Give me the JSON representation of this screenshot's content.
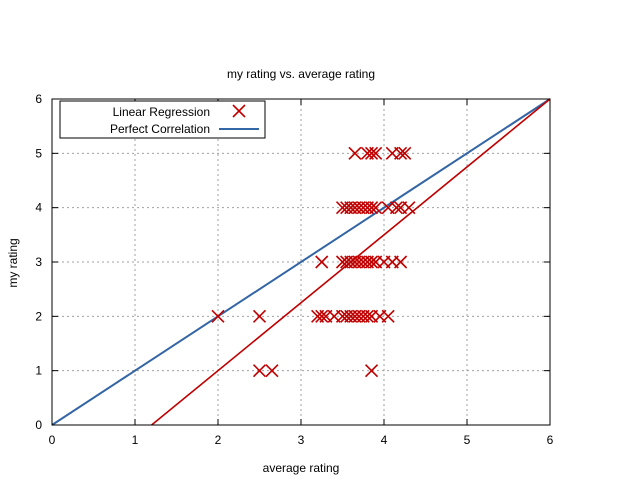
{
  "chart_data": {
    "type": "scatter",
    "title": "my rating vs. average rating",
    "xlabel": "average rating",
    "ylabel": "my rating",
    "xlim": [
      0,
      6
    ],
    "ylim": [
      0,
      6
    ],
    "xticks": [
      0,
      1,
      2,
      3,
      4,
      5,
      6
    ],
    "yticks": [
      0,
      1,
      2,
      3,
      4,
      5,
      6
    ],
    "grid": true,
    "legend_position": "top-left",
    "series": [
      {
        "name": "Linear Regression",
        "kind": "scatter",
        "marker": "x",
        "color": "#c00000",
        "points": [
          [
            2.0,
            2
          ],
          [
            2.5,
            2
          ],
          [
            3.2,
            2
          ],
          [
            3.25,
            2
          ],
          [
            3.3,
            2
          ],
          [
            3.4,
            2
          ],
          [
            3.5,
            2
          ],
          [
            3.55,
            2
          ],
          [
            3.6,
            2
          ],
          [
            3.65,
            2
          ],
          [
            3.7,
            2
          ],
          [
            3.75,
            2
          ],
          [
            3.8,
            2
          ],
          [
            3.85,
            2
          ],
          [
            3.95,
            2
          ],
          [
            4.05,
            2
          ],
          [
            2.5,
            1
          ],
          [
            2.65,
            1
          ],
          [
            3.85,
            1
          ],
          [
            3.25,
            3
          ],
          [
            3.5,
            3
          ],
          [
            3.55,
            3
          ],
          [
            3.6,
            3
          ],
          [
            3.65,
            3
          ],
          [
            3.7,
            3
          ],
          [
            3.75,
            3
          ],
          [
            3.8,
            3
          ],
          [
            3.85,
            3
          ],
          [
            3.9,
            3
          ],
          [
            4.0,
            3
          ],
          [
            4.1,
            3
          ],
          [
            4.2,
            3
          ],
          [
            3.5,
            4
          ],
          [
            3.55,
            4
          ],
          [
            3.6,
            4
          ],
          [
            3.65,
            4
          ],
          [
            3.7,
            4
          ],
          [
            3.75,
            4
          ],
          [
            3.8,
            4
          ],
          [
            3.85,
            4
          ],
          [
            3.9,
            4
          ],
          [
            4.05,
            4
          ],
          [
            4.15,
            4
          ],
          [
            4.2,
            4
          ],
          [
            4.3,
            4
          ],
          [
            3.65,
            5
          ],
          [
            3.8,
            5
          ],
          [
            3.85,
            5
          ],
          [
            3.9,
            5
          ],
          [
            4.1,
            5
          ],
          [
            4.2,
            5
          ],
          [
            4.25,
            5
          ]
        ]
      },
      {
        "name": "Perfect Correlation",
        "kind": "line",
        "color": "#3465a4",
        "points": [
          [
            0,
            0
          ],
          [
            6,
            6
          ]
        ]
      }
    ],
    "regression_line": {
      "color": "#c00000",
      "points": [
        [
          1.2,
          0
        ],
        [
          6,
          6
        ]
      ]
    }
  }
}
